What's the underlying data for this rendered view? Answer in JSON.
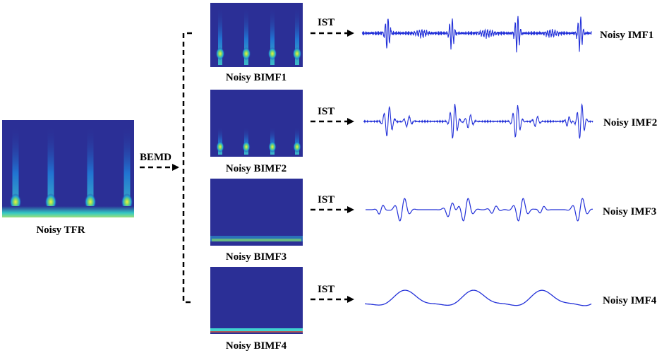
{
  "input": {
    "label": "Noisy TFR"
  },
  "decomposition": {
    "method_label": "BEMD"
  },
  "transform": {
    "label": "IST"
  },
  "components": [
    {
      "bimf_label": "Noisy BIMF1",
      "imf_label": "Noisy IMF1"
    },
    {
      "bimf_label": "Noisy BIMF2",
      "imf_label": "Noisy IMF2"
    },
    {
      "bimf_label": "Noisy BIMF3",
      "imf_label": "Noisy IMF3"
    },
    {
      "bimf_label": "Noisy BIMF4",
      "imf_label": "Noisy IMF4"
    }
  ],
  "colors": {
    "heatmap_bg": "#2b2f96",
    "wave": "#2230d8",
    "arrow": "#000000"
  }
}
